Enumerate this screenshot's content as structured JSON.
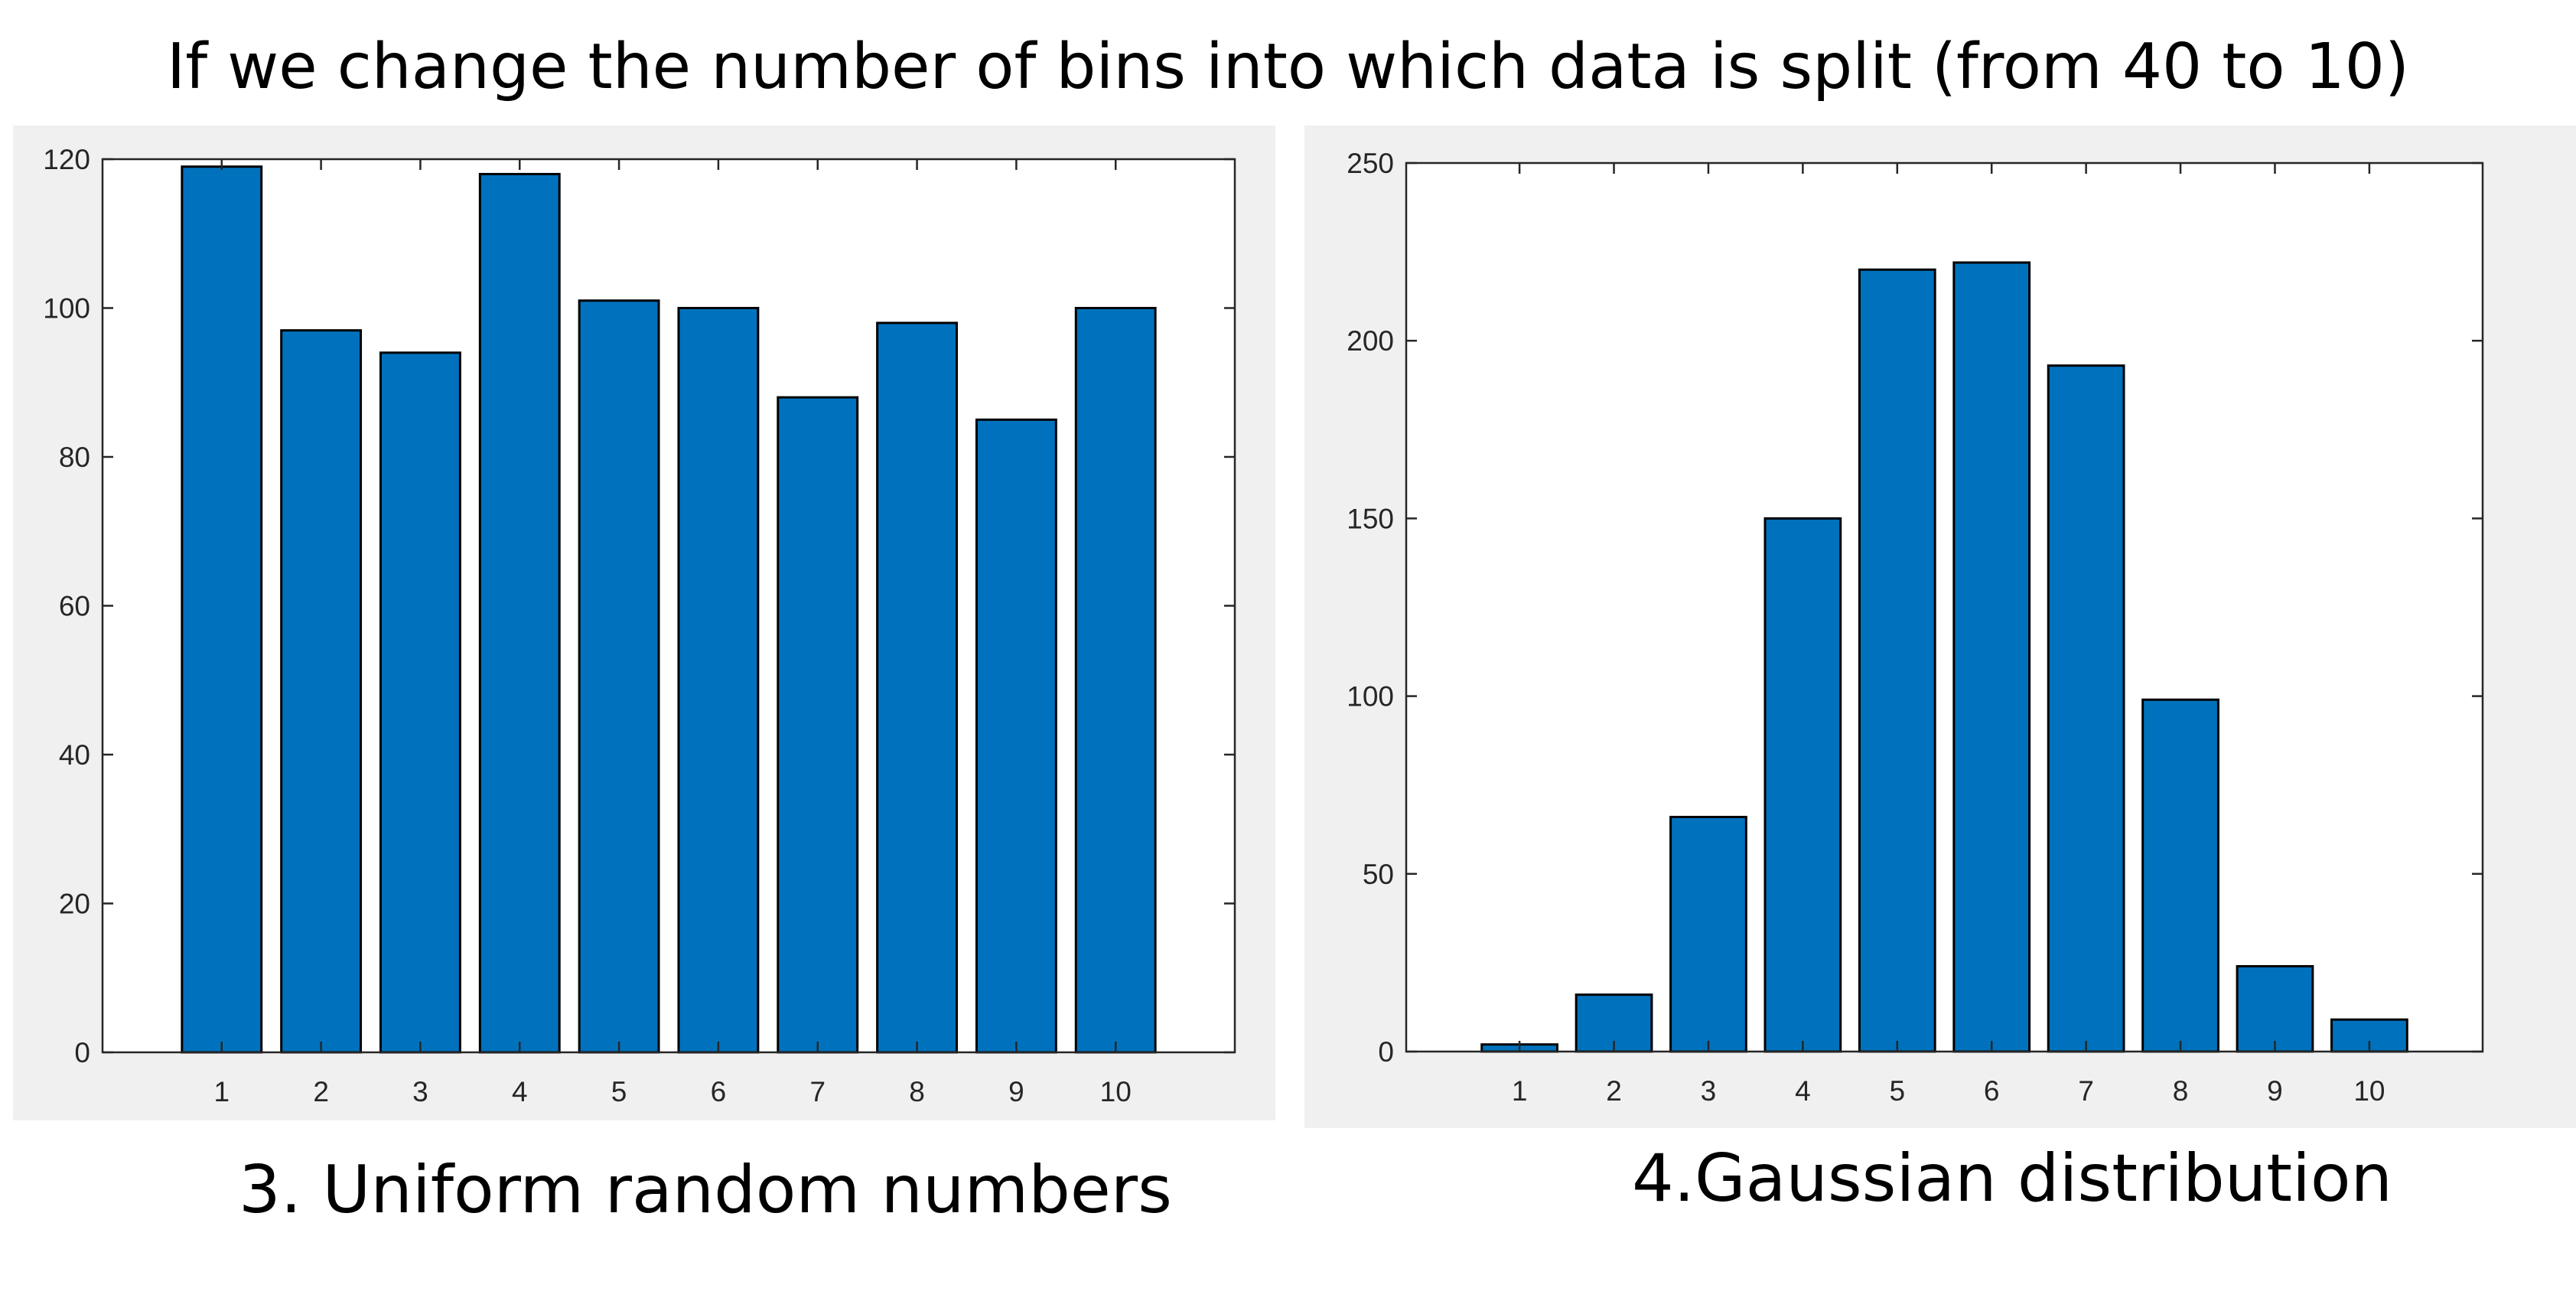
{
  "page": {
    "title": "If we change the number of bins into which data is split (from 40 to 10)"
  },
  "chart_data": [
    {
      "type": "bar",
      "title": "",
      "caption": "3. Uniform random numbers",
      "xlabel": "",
      "ylabel": "",
      "categories": [
        "1",
        "2",
        "3",
        "4",
        "5",
        "6",
        "7",
        "8",
        "9",
        "10"
      ],
      "values": [
        119,
        97,
        94,
        118,
        101,
        100,
        88,
        98,
        85,
        100
      ],
      "ylim": [
        0,
        120
      ],
      "yticks": [
        0,
        20,
        40,
        60,
        80,
        100,
        120
      ],
      "xlim": [
        -0.2,
        11.2
      ],
      "grid": false,
      "bar_color": "#0072bd",
      "edge_color": "#000000"
    },
    {
      "type": "bar",
      "title": "",
      "caption": "4.Gaussian distribution",
      "xlabel": "",
      "ylabel": "",
      "categories": [
        "1",
        "2",
        "3",
        "4",
        "5",
        "6",
        "7",
        "8",
        "9",
        "10"
      ],
      "values": [
        2,
        16,
        66,
        150,
        220,
        222,
        193,
        99,
        24,
        9
      ],
      "ylim": [
        0,
        250
      ],
      "yticks": [
        0,
        50,
        100,
        150,
        200,
        250
      ],
      "xlim": [
        -0.2,
        11.2
      ],
      "grid": false,
      "bar_color": "#0072bd",
      "edge_color": "#000000"
    }
  ]
}
